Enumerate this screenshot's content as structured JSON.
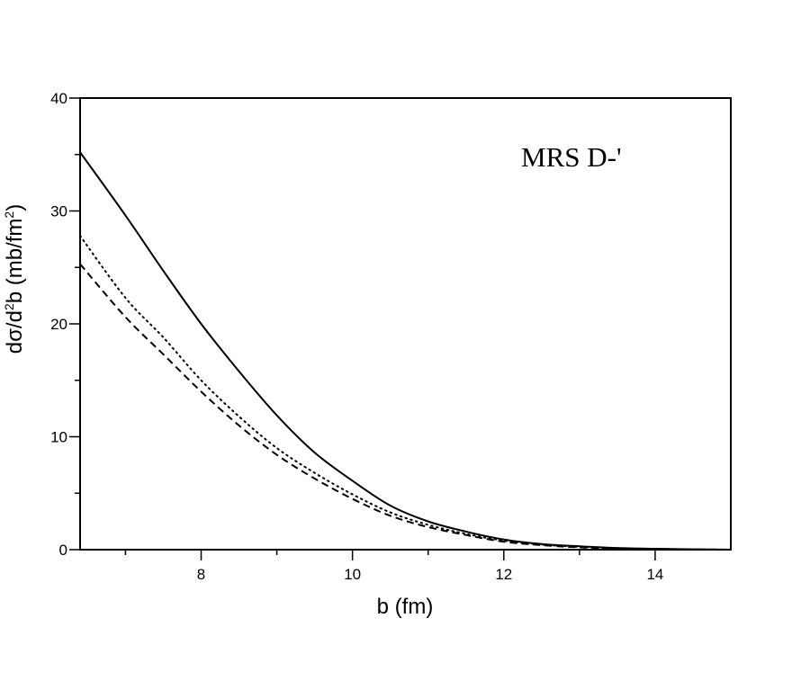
{
  "chart_data": {
    "type": "line",
    "xlabel": "b (fm)",
    "ylabel": {
      "part1": "dσ/d",
      "sup1": "2",
      "part2": "b (mb/fm",
      "sup2": "2",
      "part3": ")"
    },
    "annotation": "MRS D-'",
    "xlim": [
      6.4,
      15
    ],
    "ylim": [
      0,
      40
    ],
    "x_ticks": [
      8,
      10,
      12,
      14
    ],
    "y_ticks": [
      0,
      10,
      20,
      30,
      40
    ],
    "x_minor_ticks": [
      7,
      9,
      11,
      13
    ],
    "y_minor_ticks": [
      5,
      15,
      25,
      35
    ],
    "grid": false,
    "legend": "none",
    "series": [
      {
        "style": "solid",
        "x": [
          6.4,
          7.0,
          7.5,
          8.0,
          8.5,
          9.0,
          9.5,
          10.0,
          10.5,
          11.0,
          11.5,
          12.0,
          12.5,
          13.0,
          13.5,
          14.0,
          14.5,
          15.0
        ],
        "y": [
          35.2,
          29.6,
          24.7,
          20.0,
          15.8,
          11.9,
          8.6,
          6.1,
          3.9,
          2.5,
          1.6,
          0.9,
          0.5,
          0.3,
          0.15,
          0.08,
          0.03,
          0.0
        ]
      },
      {
        "style": "dotted",
        "x": [
          6.4,
          7.0,
          7.5,
          8.0,
          8.5,
          9.0,
          9.5,
          10.0,
          10.5,
          11.0,
          11.5,
          12.0,
          12.5,
          13.0,
          13.5,
          14.0,
          14.5,
          15.0
        ],
        "y": [
          27.8,
          22.3,
          18.8,
          15.0,
          11.8,
          9.0,
          6.8,
          4.9,
          3.3,
          2.2,
          1.4,
          0.8,
          0.45,
          0.25,
          0.12,
          0.06,
          0.02,
          0.0
        ]
      },
      {
        "style": "dashed",
        "x": [
          6.4,
          7.0,
          7.5,
          8.0,
          8.5,
          9.0,
          9.5,
          10.0,
          10.5,
          11.0,
          11.5,
          12.0,
          12.5,
          13.0,
          13.5,
          14.0,
          14.5,
          15.0
        ],
        "y": [
          25.3,
          20.6,
          17.3,
          14.0,
          11.0,
          8.4,
          6.3,
          4.5,
          3.0,
          2.0,
          1.3,
          0.7,
          0.4,
          0.2,
          0.1,
          0.05,
          0.02,
          0.0
        ]
      }
    ]
  }
}
